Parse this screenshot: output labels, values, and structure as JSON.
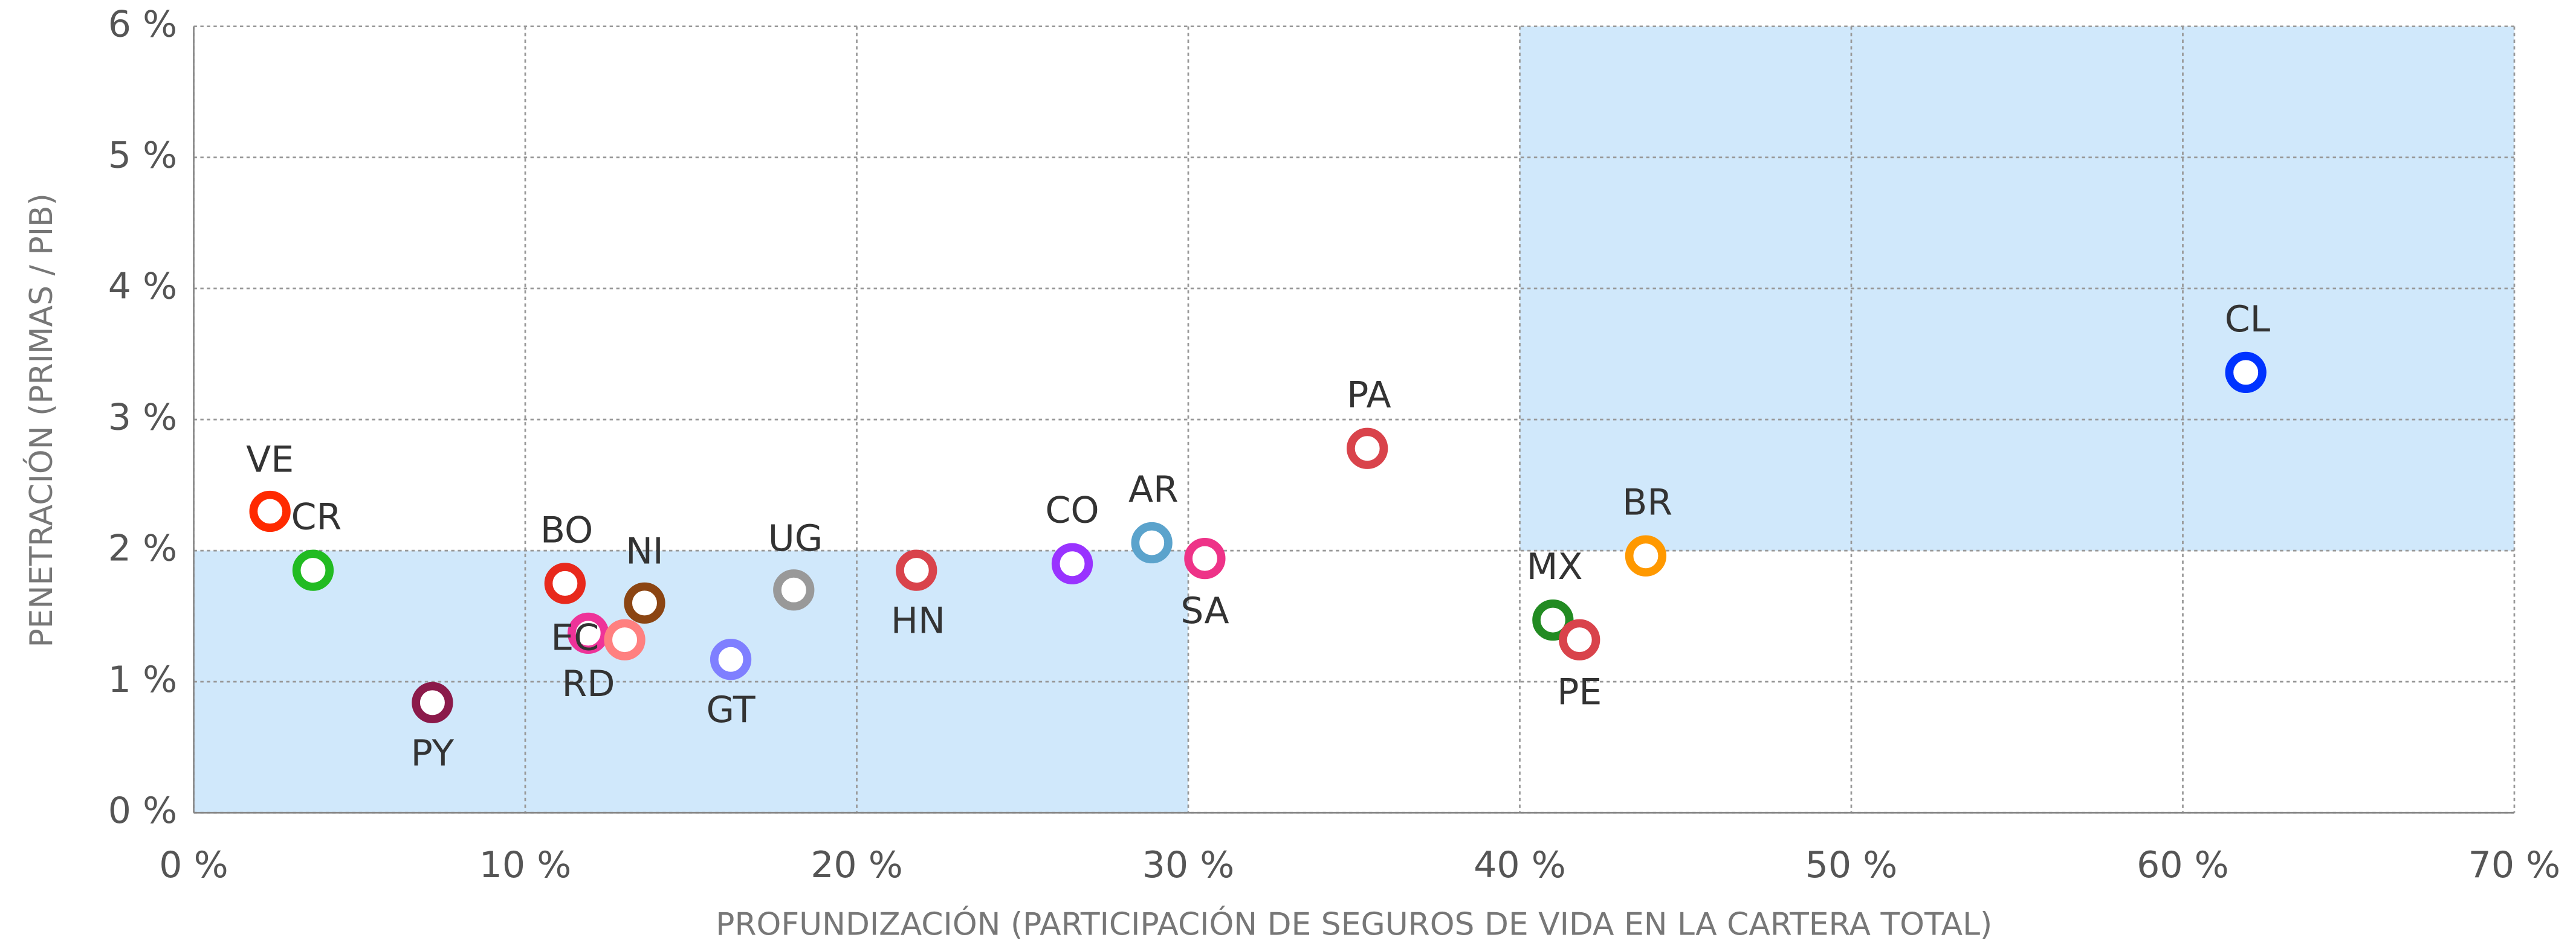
{
  "chart_data": {
    "type": "scatter",
    "x_label": "PROFUNDIZACIÓN (PARTICIPACIÓN DE SEGUROS DE VIDA EN LA CARTERA TOTAL)",
    "y_label": "PENETRACIÓN (PRIMAS / PIB)",
    "labels": [
      "VE",
      "CR",
      "PY",
      "BO",
      "EC",
      "RD",
      "NI",
      "GT",
      "UG",
      "HN",
      "CO",
      "AR",
      "SA",
      "PA",
      "MX",
      "PE",
      "BR",
      "CL"
    ],
    "x": [
      2.3,
      3.6,
      7.2,
      11.2,
      11.9,
      13.0,
      13.6,
      16.2,
      18.1,
      21.8,
      26.5,
      28.9,
      30.5,
      35.4,
      41.0,
      41.8,
      43.8,
      61.9
    ],
    "values": [
      2.3,
      1.85,
      0.84,
      1.75,
      1.37,
      1.32,
      1.6,
      1.17,
      1.7,
      1.85,
      1.9,
      2.06,
      1.94,
      2.78,
      1.47,
      1.32,
      1.96,
      3.36
    ],
    "colors": [
      "#ff2a00",
      "#22bb22",
      "#8b1a4a",
      "#e8291c",
      "#ee3399",
      "#ff8080",
      "#8b4513",
      "#7f7fff",
      "#999999",
      "#d9434b",
      "#9933ff",
      "#5ba3cc",
      "#ee3388",
      "#d9434b",
      "#228b22",
      "#d9434b",
      "#ff9900",
      "#0033ff"
    ],
    "regions": [
      {
        "xlim": [
          0,
          30
        ],
        "ylim": [
          0,
          2
        ],
        "color": "#d0e8fb"
      },
      {
        "xlim": [
          40,
          70
        ],
        "ylim": [
          2,
          6
        ],
        "color": "#d0e8fb"
      }
    ],
    "xlim": [
      0,
      70
    ],
    "ylim": [
      0,
      6
    ],
    "xticks": [
      {
        "value": 0,
        "label": "0 %"
      },
      {
        "value": 10,
        "label": "10 %"
      },
      {
        "value": 20,
        "label": "20 %"
      },
      {
        "value": 30,
        "label": "30 %"
      },
      {
        "value": 40,
        "label": "40 %"
      },
      {
        "value": 50,
        "label": "50 %"
      },
      {
        "value": 60,
        "label": "60 %"
      },
      {
        "value": 70,
        "label": "70 %"
      }
    ],
    "yticks": [
      {
        "value": 0,
        "label": "0 %"
      },
      {
        "value": 1,
        "label": "1 %"
      },
      {
        "value": 2,
        "label": "2 %"
      },
      {
        "value": 3,
        "label": "3 %"
      },
      {
        "value": 4,
        "label": "4 %"
      },
      {
        "value": 5,
        "label": "5 %"
      },
      {
        "value": 6,
        "label": "6 %"
      }
    ],
    "grid": true
  }
}
